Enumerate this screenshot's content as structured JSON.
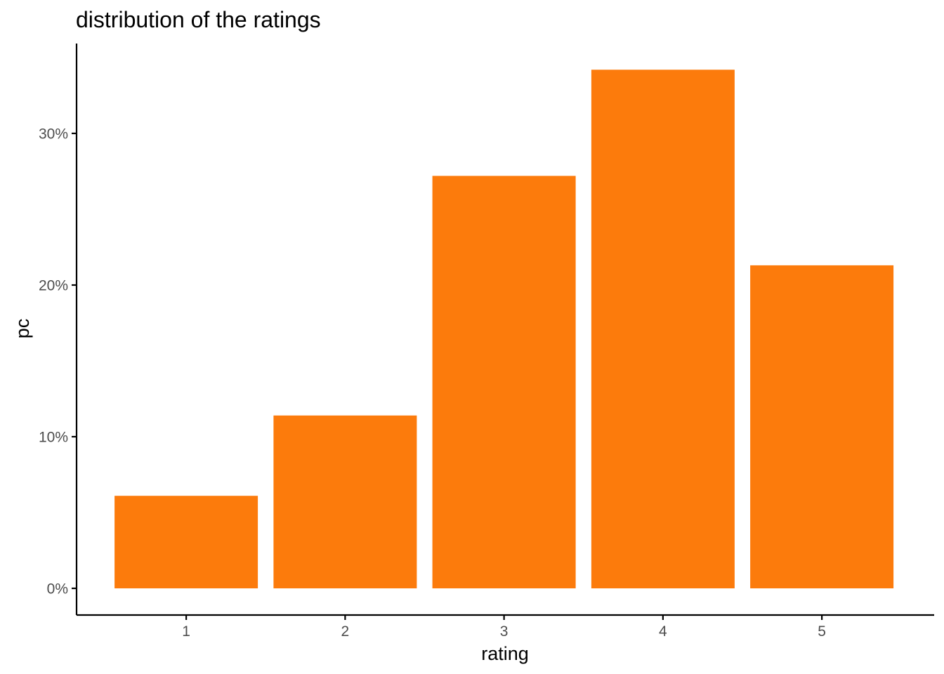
{
  "chart_data": {
    "type": "bar",
    "title": "distribution of the ratings",
    "xlabel": "rating",
    "ylabel": "pc",
    "categories": [
      "1",
      "2",
      "3",
      "4",
      "5"
    ],
    "values": [
      6.1,
      11.4,
      27.2,
      34.2,
      21.3
    ],
    "value_unit": "%",
    "ylim": [
      -1.6,
      35.9
    ],
    "yticks": [
      0,
      10,
      20,
      30
    ],
    "ytick_labels": [
      "0%",
      "10%",
      "20%",
      "30%"
    ],
    "bar_color": "#FC7B0C",
    "grid": false,
    "legend": "none"
  }
}
